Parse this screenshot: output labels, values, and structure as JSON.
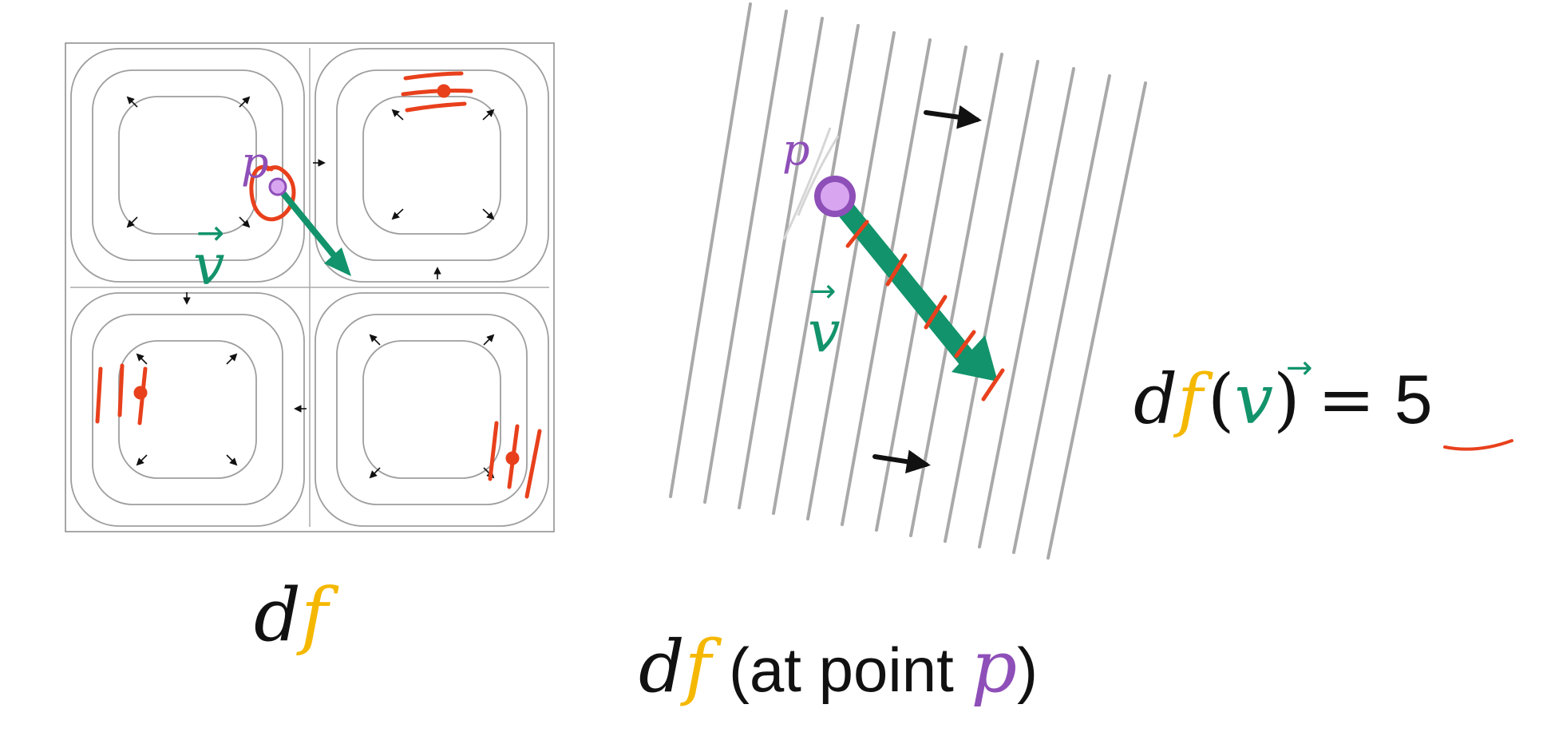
{
  "colors": {
    "d_black": "#111111",
    "f_gold": "#F5B800",
    "v_green": "#12936B",
    "p_purple": "#8E4FB8",
    "p_fill": "#D8A6F0",
    "ink_red": "#E8401C",
    "contour_gray": "#9E9E9E",
    "frame_gray": "#8A8A8A"
  },
  "left_panel": {
    "point_label": "p",
    "vector_label": "v",
    "vector_arrow_glyph": "→"
  },
  "middle_panel": {
    "point_label": "p",
    "vector_label": "v",
    "vector_arrow_glyph": "→"
  },
  "equation": {
    "d": "d",
    "f": "f",
    "open_paren": "(",
    "v": "v",
    "v_arrow": "→",
    "close_paren": ")",
    "equals": "=",
    "value": "5"
  },
  "caption_left": {
    "d": "d",
    "f": "f"
  },
  "caption_middle": {
    "d": "d",
    "f": "f",
    "text": "(at point ",
    "p": "p",
    "close": ")"
  }
}
